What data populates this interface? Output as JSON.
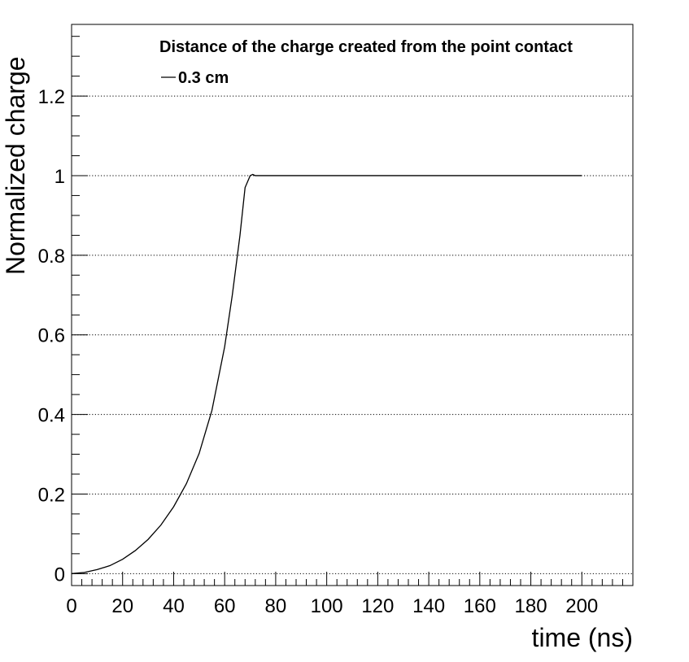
{
  "chart_data": {
    "type": "line",
    "title": "",
    "xlabel": "time (ns)",
    "ylabel": "Normalized charge",
    "xlim": [
      0,
      220
    ],
    "ylim": [
      -0.03,
      1.38
    ],
    "x_ticks": [
      0,
      20,
      40,
      60,
      80,
      100,
      120,
      140,
      160,
      180,
      200
    ],
    "y_ticks": [
      0,
      0.2,
      0.4,
      0.6,
      0.8,
      1,
      1.2
    ],
    "grid": "horizontal dotted",
    "legend_position": "top",
    "legend_title": "Distance of the charge created from the point contact",
    "series": [
      {
        "name": "0.3 cm",
        "color": "#000000",
        "x": [
          0,
          5,
          10,
          15,
          20,
          25,
          30,
          35,
          40,
          45,
          50,
          55,
          60,
          63,
          66,
          68,
          70,
          71,
          72,
          80,
          100,
          120,
          140,
          160,
          180,
          200
        ],
        "y": [
          0,
          0.003,
          0.01,
          0.02,
          0.036,
          0.058,
          0.086,
          0.122,
          0.168,
          0.226,
          0.302,
          0.41,
          0.57,
          0.7,
          0.85,
          0.97,
          1.0,
          1.003,
          1.0,
          1.0,
          1.0,
          1.0,
          1.0,
          1.0,
          1.0,
          1.0
        ]
      }
    ]
  }
}
